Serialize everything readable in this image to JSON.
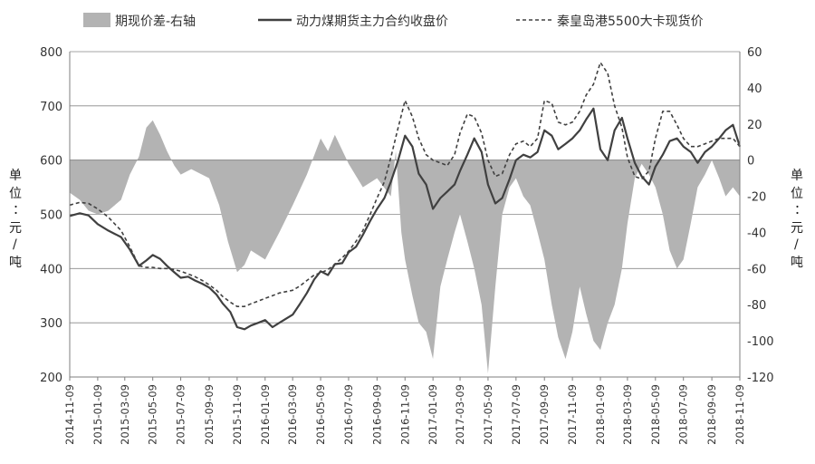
{
  "chart_data": {
    "type": "line",
    "title": "",
    "legend_position": "top",
    "y_left": {
      "label": "单位：元/吨",
      "range": [
        200,
        800
      ],
      "ticks": [
        "200",
        "300",
        "400",
        "500",
        "600",
        "700",
        "800"
      ]
    },
    "y_right": {
      "label": "单位：元/吨",
      "range": [
        -120,
        60
      ],
      "ticks": [
        "-120",
        "-100",
        "-80",
        "-60",
        "-40",
        "-20",
        "0",
        "20",
        "40",
        "60"
      ]
    },
    "x_range": [
      "2014-11-09",
      "2018-11-09"
    ],
    "x_tick_labels": [
      "2014-11-09",
      "2015-01-09",
      "2015-03-09",
      "2015-05-09",
      "2015-07-09",
      "2015-09-09",
      "2015-11-09",
      "2016-01-09",
      "2016-03-09",
      "2016-05-09",
      "2016-07-09",
      "2016-09-09",
      "2016-11-09",
      "2017-01-09",
      "2017-03-09",
      "2017-05-09",
      "2017-07-09",
      "2017-09-09",
      "2017-11-09",
      "2018-01-09",
      "2018-03-09",
      "2018-05-09",
      "2018-07-09",
      "2018-09-09",
      "2018-11-09"
    ],
    "grid": "horizontal",
    "colors": {
      "basis": "#b3b3b3",
      "futures": "#404040",
      "spot": "#404040",
      "grid": "#888888",
      "axis": "#7f7f7f"
    },
    "series": [
      {
        "name": "期现价差-右轴",
        "kind": "area",
        "axis": "right",
        "points": [
          [
            "2014-11-09",
            -18
          ],
          [
            "2014-12-01",
            -22
          ],
          [
            "2014-12-20",
            -28
          ],
          [
            "2015-01-09",
            -30
          ],
          [
            "2015-02-01",
            -28
          ],
          [
            "2015-03-01",
            -22
          ],
          [
            "2015-03-20",
            -8
          ],
          [
            "2015-04-09",
            2
          ],
          [
            "2015-04-25",
            18
          ],
          [
            "2015-05-09",
            22
          ],
          [
            "2015-05-25",
            14
          ],
          [
            "2015-06-09",
            5
          ],
          [
            "2015-06-25",
            -3
          ],
          [
            "2015-07-09",
            -8
          ],
          [
            "2015-08-01",
            -5
          ],
          [
            "2015-09-09",
            -10
          ],
          [
            "2015-10-01",
            -25
          ],
          [
            "2015-10-20",
            -45
          ],
          [
            "2015-11-09",
            -62
          ],
          [
            "2015-11-25",
            -58
          ],
          [
            "2015-12-09",
            -50
          ],
          [
            "2016-01-09",
            -55
          ],
          [
            "2016-02-09",
            -40
          ],
          [
            "2016-03-09",
            -25
          ],
          [
            "2016-04-09",
            -8
          ],
          [
            "2016-05-09",
            12
          ],
          [
            "2016-05-25",
            5
          ],
          [
            "2016-06-09",
            14
          ],
          [
            "2016-07-09",
            -2
          ],
          [
            "2016-08-09",
            -15
          ],
          [
            "2016-09-09",
            -10
          ],
          [
            "2016-10-09",
            -20
          ],
          [
            "2016-10-20",
            5
          ],
          [
            "2016-11-01",
            -40
          ],
          [
            "2016-11-09",
            -55
          ],
          [
            "2016-11-25",
            -75
          ],
          [
            "2016-12-09",
            -90
          ],
          [
            "2016-12-25",
            -95
          ],
          [
            "2017-01-09",
            -110
          ],
          [
            "2017-01-25",
            -70
          ],
          [
            "2017-02-09",
            -55
          ],
          [
            "2017-02-25",
            -40
          ],
          [
            "2017-03-09",
            -30
          ],
          [
            "2017-03-25",
            -45
          ],
          [
            "2017-04-09",
            -60
          ],
          [
            "2017-04-25",
            -80
          ],
          [
            "2017-05-09",
            -118
          ],
          [
            "2017-05-25",
            -70
          ],
          [
            "2017-06-09",
            -30
          ],
          [
            "2017-06-25",
            -15
          ],
          [
            "2017-07-09",
            -10
          ],
          [
            "2017-07-25",
            -20
          ],
          [
            "2017-08-09",
            -25
          ],
          [
            "2017-08-25",
            -40
          ],
          [
            "2017-09-09",
            -55
          ],
          [
            "2017-09-25",
            -80
          ],
          [
            "2017-10-09",
            -98
          ],
          [
            "2017-10-25",
            -110
          ],
          [
            "2017-11-09",
            -95
          ],
          [
            "2017-11-25",
            -70
          ],
          [
            "2017-12-09",
            -85
          ],
          [
            "2017-12-25",
            -100
          ],
          [
            "2018-01-09",
            -105
          ],
          [
            "2018-01-25",
            -90
          ],
          [
            "2018-02-09",
            -80
          ],
          [
            "2018-02-25",
            -60
          ],
          [
            "2018-03-09",
            -35
          ],
          [
            "2018-03-25",
            -10
          ],
          [
            "2018-04-09",
            -2
          ],
          [
            "2018-04-25",
            -8
          ],
          [
            "2018-05-09",
            -15
          ],
          [
            "2018-05-25",
            -30
          ],
          [
            "2018-06-09",
            -50
          ],
          [
            "2018-06-25",
            -60
          ],
          [
            "2018-07-09",
            -55
          ],
          [
            "2018-07-25",
            -35
          ],
          [
            "2018-08-09",
            -15
          ],
          [
            "2018-08-25",
            -8
          ],
          [
            "2018-09-09",
            0
          ],
          [
            "2018-09-25",
            -10
          ],
          [
            "2018-10-09",
            -20
          ],
          [
            "2018-10-25",
            -15
          ],
          [
            "2018-11-09",
            -20
          ]
        ]
      },
      {
        "name": "动力煤期货主力合约收盘价",
        "kind": "line",
        "axis": "left",
        "dash": "solid",
        "points": [
          [
            "2014-11-09",
            497
          ],
          [
            "2014-12-01",
            502
          ],
          [
            "2014-12-20",
            498
          ],
          [
            "2015-01-09",
            482
          ],
          [
            "2015-02-01",
            470
          ],
          [
            "2015-03-01",
            458
          ],
          [
            "2015-03-20",
            435
          ],
          [
            "2015-04-09",
            405
          ],
          [
            "2015-04-25",
            415
          ],
          [
            "2015-05-09",
            425
          ],
          [
            "2015-05-25",
            418
          ],
          [
            "2015-06-09",
            405
          ],
          [
            "2015-06-25",
            393
          ],
          [
            "2015-07-09",
            383
          ],
          [
            "2015-07-25",
            385
          ],
          [
            "2015-08-09",
            378
          ],
          [
            "2015-08-25",
            372
          ],
          [
            "2015-09-09",
            365
          ],
          [
            "2015-09-25",
            352
          ],
          [
            "2015-10-09",
            335
          ],
          [
            "2015-10-25",
            320
          ],
          [
            "2015-11-09",
            292
          ],
          [
            "2015-11-25",
            288
          ],
          [
            "2015-12-09",
            295
          ],
          [
            "2015-12-25",
            300
          ],
          [
            "2016-01-09",
            305
          ],
          [
            "2016-01-25",
            292
          ],
          [
            "2016-02-09",
            300
          ],
          [
            "2016-03-09",
            315
          ],
          [
            "2016-03-25",
            335
          ],
          [
            "2016-04-09",
            355
          ],
          [
            "2016-04-25",
            380
          ],
          [
            "2016-05-09",
            395
          ],
          [
            "2016-05-25",
            388
          ],
          [
            "2016-06-09",
            408
          ],
          [
            "2016-06-25",
            410
          ],
          [
            "2016-07-09",
            430
          ],
          [
            "2016-07-25",
            440
          ],
          [
            "2016-08-09",
            462
          ],
          [
            "2016-08-25",
            488
          ],
          [
            "2016-09-09",
            510
          ],
          [
            "2016-09-25",
            530
          ],
          [
            "2016-10-09",
            560
          ],
          [
            "2016-10-25",
            600
          ],
          [
            "2016-11-09",
            645
          ],
          [
            "2016-11-25",
            625
          ],
          [
            "2016-12-09",
            575
          ],
          [
            "2016-12-25",
            555
          ],
          [
            "2017-01-09",
            510
          ],
          [
            "2017-01-25",
            530
          ],
          [
            "2017-02-09",
            542
          ],
          [
            "2017-02-25",
            555
          ],
          [
            "2017-03-09",
            580
          ],
          [
            "2017-03-25",
            610
          ],
          [
            "2017-04-09",
            640
          ],
          [
            "2017-04-25",
            615
          ],
          [
            "2017-05-09",
            555
          ],
          [
            "2017-05-25",
            520
          ],
          [
            "2017-06-09",
            530
          ],
          [
            "2017-06-25",
            565
          ],
          [
            "2017-07-09",
            600
          ],
          [
            "2017-07-25",
            610
          ],
          [
            "2017-08-09",
            605
          ],
          [
            "2017-08-25",
            615
          ],
          [
            "2017-09-09",
            655
          ],
          [
            "2017-09-25",
            645
          ],
          [
            "2017-10-09",
            620
          ],
          [
            "2017-10-25",
            630
          ],
          [
            "2017-11-09",
            640
          ],
          [
            "2017-11-25",
            655
          ],
          [
            "2017-12-09",
            675
          ],
          [
            "2017-12-25",
            695
          ],
          [
            "2018-01-09",
            620
          ],
          [
            "2018-01-25",
            600
          ],
          [
            "2018-02-09",
            655
          ],
          [
            "2018-02-25",
            678
          ],
          [
            "2018-03-09",
            640
          ],
          [
            "2018-03-25",
            595
          ],
          [
            "2018-04-09",
            570
          ],
          [
            "2018-04-25",
            555
          ],
          [
            "2018-05-09",
            588
          ],
          [
            "2018-05-25",
            610
          ],
          [
            "2018-06-09",
            635
          ],
          [
            "2018-06-25",
            640
          ],
          [
            "2018-07-09",
            625
          ],
          [
            "2018-07-25",
            615
          ],
          [
            "2018-08-09",
            595
          ],
          [
            "2018-08-25",
            615
          ],
          [
            "2018-09-09",
            625
          ],
          [
            "2018-09-25",
            640
          ],
          [
            "2018-10-09",
            655
          ],
          [
            "2018-10-25",
            665
          ],
          [
            "2018-11-09",
            625
          ]
        ]
      },
      {
        "name": "秦皇岛港5500大卡现货价",
        "kind": "line",
        "axis": "left",
        "dash": "dashed",
        "points": [
          [
            "2014-11-09",
            517
          ],
          [
            "2014-12-01",
            522
          ],
          [
            "2014-12-20",
            520
          ],
          [
            "2015-01-09",
            510
          ],
          [
            "2015-02-01",
            495
          ],
          [
            "2015-03-01",
            470
          ],
          [
            "2015-03-20",
            440
          ],
          [
            "2015-04-09",
            405
          ],
          [
            "2015-04-25",
            402
          ],
          [
            "2015-05-09",
            402
          ],
          [
            "2015-05-25",
            400
          ],
          [
            "2015-06-09",
            400
          ],
          [
            "2015-06-25",
            398
          ],
          [
            "2015-07-09",
            395
          ],
          [
            "2015-07-25",
            390
          ],
          [
            "2015-08-09",
            385
          ],
          [
            "2015-08-25",
            378
          ],
          [
            "2015-09-09",
            370
          ],
          [
            "2015-09-25",
            360
          ],
          [
            "2015-10-09",
            348
          ],
          [
            "2015-10-25",
            338
          ],
          [
            "2015-11-09",
            330
          ],
          [
            "2015-11-25",
            330
          ],
          [
            "2015-12-09",
            335
          ],
          [
            "2015-12-25",
            340
          ],
          [
            "2016-01-09",
            345
          ],
          [
            "2016-01-25",
            350
          ],
          [
            "2016-02-09",
            355
          ],
          [
            "2016-03-09",
            360
          ],
          [
            "2016-03-25",
            368
          ],
          [
            "2016-04-09",
            378
          ],
          [
            "2016-04-25",
            388
          ],
          [
            "2016-05-09",
            392
          ],
          [
            "2016-05-25",
            398
          ],
          [
            "2016-06-09",
            408
          ],
          [
            "2016-06-25",
            420
          ],
          [
            "2016-07-09",
            432
          ],
          [
            "2016-07-25",
            450
          ],
          [
            "2016-08-09",
            470
          ],
          [
            "2016-08-25",
            500
          ],
          [
            "2016-09-09",
            530
          ],
          [
            "2016-09-25",
            560
          ],
          [
            "2016-10-09",
            605
          ],
          [
            "2016-10-25",
            660
          ],
          [
            "2016-11-09",
            710
          ],
          [
            "2016-11-25",
            680
          ],
          [
            "2016-12-09",
            640
          ],
          [
            "2016-12-25",
            610
          ],
          [
            "2017-01-09",
            600
          ],
          [
            "2017-01-25",
            595
          ],
          [
            "2017-02-09",
            590
          ],
          [
            "2017-02-25",
            610
          ],
          [
            "2017-03-09",
            650
          ],
          [
            "2017-03-25",
            685
          ],
          [
            "2017-04-09",
            680
          ],
          [
            "2017-04-25",
            650
          ],
          [
            "2017-05-09",
            600
          ],
          [
            "2017-05-25",
            570
          ],
          [
            "2017-06-09",
            575
          ],
          [
            "2017-06-25",
            610
          ],
          [
            "2017-07-09",
            630
          ],
          [
            "2017-07-25",
            635
          ],
          [
            "2017-08-09",
            625
          ],
          [
            "2017-08-25",
            640
          ],
          [
            "2017-09-09",
            710
          ],
          [
            "2017-09-25",
            705
          ],
          [
            "2017-10-09",
            670
          ],
          [
            "2017-10-25",
            665
          ],
          [
            "2017-11-09",
            670
          ],
          [
            "2017-11-25",
            690
          ],
          [
            "2017-12-09",
            720
          ],
          [
            "2017-12-25",
            740
          ],
          [
            "2018-01-09",
            780
          ],
          [
            "2018-01-25",
            760
          ],
          [
            "2018-02-09",
            700
          ],
          [
            "2018-02-25",
            660
          ],
          [
            "2018-03-09",
            605
          ],
          [
            "2018-03-25",
            570
          ],
          [
            "2018-04-09",
            565
          ],
          [
            "2018-04-25",
            580
          ],
          [
            "2018-05-09",
            640
          ],
          [
            "2018-05-25",
            690
          ],
          [
            "2018-06-09",
            690
          ],
          [
            "2018-06-25",
            665
          ],
          [
            "2018-07-09",
            640
          ],
          [
            "2018-07-25",
            625
          ],
          [
            "2018-08-09",
            625
          ],
          [
            "2018-08-25",
            630
          ],
          [
            "2018-09-09",
            635
          ],
          [
            "2018-09-25",
            640
          ],
          [
            "2018-10-09",
            640
          ],
          [
            "2018-10-25",
            640
          ],
          [
            "2018-11-09",
            625
          ]
        ]
      }
    ]
  }
}
